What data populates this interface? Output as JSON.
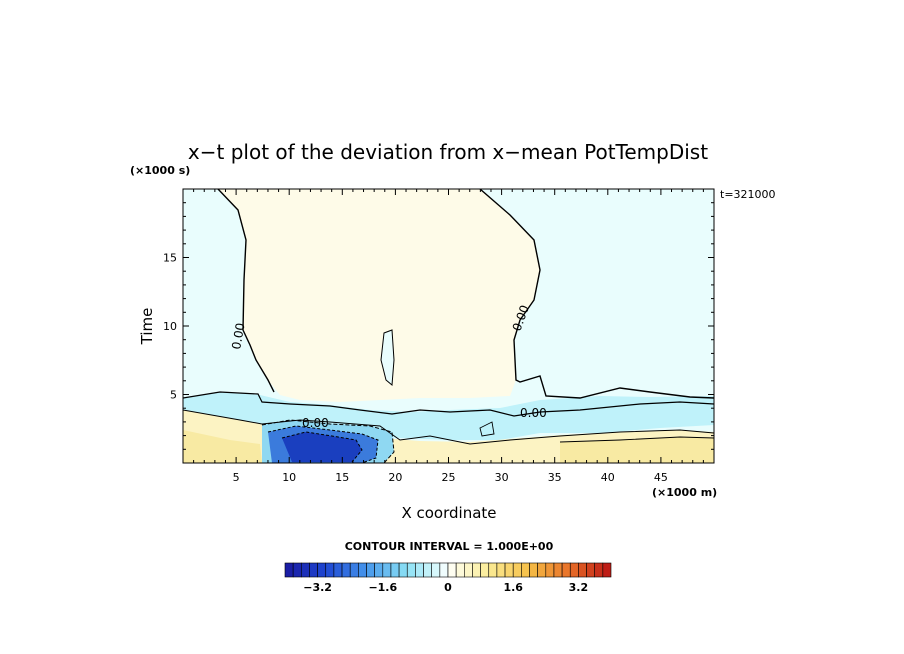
{
  "chart_data": {
    "type": "heatmap",
    "title": "x−t plot of the deviation from x−mean PotTempDist",
    "xlabel": "X coordinate",
    "ylabel": "Time",
    "x_unit": "(×1000 m)",
    "y_unit": "(×1000 s)",
    "time_stamp": "t=321000",
    "xlim": [
      0,
      50
    ],
    "ylim": [
      0,
      20
    ],
    "x_ticks": [
      5,
      10,
      15,
      20,
      25,
      30,
      35,
      40,
      45
    ],
    "y_ticks": [
      5,
      10,
      15
    ],
    "contour_interval_text": "CONTOUR INTERVAL = 1.000E+00",
    "contour_label": "0.00",
    "colorbar": {
      "min": -4.0,
      "max": 4.0,
      "step": 0.2,
      "tick_values": [
        -3.2,
        -1.6,
        0,
        1.6,
        3.2
      ],
      "tick_labels": [
        "−3.2",
        "−1.6",
        "0",
        "1.6",
        "3.2"
      ]
    },
    "regions": [
      {
        "name": "upper-center-positive",
        "value": 0.1,
        "description": "near-zero slightly positive plume, x 4.5–34, t 4–20"
      },
      {
        "name": "upper-left-negative",
        "value": -0.15,
        "description": "slightly negative, x 0–5, t 5–20"
      },
      {
        "name": "upper-right-negative",
        "value": -0.15,
        "description": "slightly negative, x 33–50, t 5–20"
      },
      {
        "name": "lower-cold-pool",
        "value": -3.0,
        "description": "strong negative, x 9–17, t 0–2.5"
      },
      {
        "name": "lower-warm-band",
        "value": 0.6,
        "description": "positive band, x 0–50, t 0–2.5"
      }
    ]
  }
}
